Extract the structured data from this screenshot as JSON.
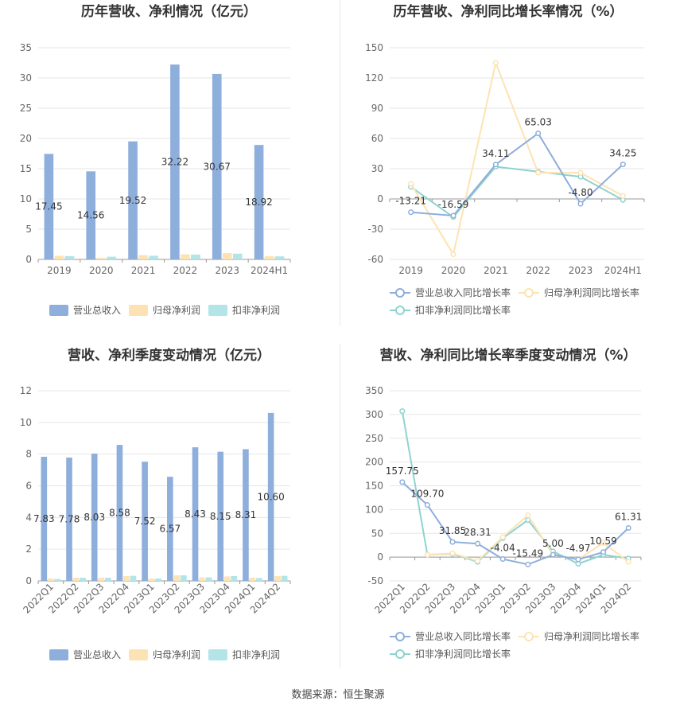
{
  "source_label": "数据来源：",
  "source_name": "恒生聚源",
  "colors": {
    "revenue": "#8eaedb",
    "net_profit": "#fde3b3",
    "deducted_profit": "#b3e4e8",
    "revenue_line": "#8eaedb",
    "net_profit_line": "#fde3b3",
    "deducted_line": "#8fd3d0",
    "grid": "#e6e6e6",
    "text": "#666666",
    "title": "#333333"
  },
  "chart_data": [
    {
      "id": "annual-bar",
      "type": "bar",
      "title": "历年营收、净利情况（亿元）",
      "categories": [
        "2019",
        "2020",
        "2021",
        "2022",
        "2023",
        "2024H1"
      ],
      "ylim": [
        0,
        35
      ],
      "yticks": [
        0,
        5,
        10,
        15,
        20,
        25,
        30,
        35
      ],
      "series": [
        {
          "name": "营业总收入",
          "values": [
            17.45,
            14.56,
            19.52,
            32.22,
            30.67,
            18.92
          ],
          "labels": [
            "17.45",
            "14.56",
            "19.52",
            "32.22",
            "30.67",
            "18.92"
          ]
        },
        {
          "name": "归母净利润",
          "values": [
            0.6,
            0.25,
            0.7,
            0.85,
            1.05,
            0.55
          ]
        },
        {
          "name": "扣非净利润",
          "values": [
            0.55,
            0.45,
            0.6,
            0.8,
            0.95,
            0.5
          ]
        }
      ],
      "legend": "bottom"
    },
    {
      "id": "annual-line",
      "type": "line",
      "title": "历年营收、净利同比增长率情况（%）",
      "categories": [
        "2019",
        "2020",
        "2021",
        "2022",
        "2023",
        "2024H1"
      ],
      "ylim": [
        -60,
        150
      ],
      "yticks": [
        -60,
        -30,
        0,
        30,
        60,
        90,
        120,
        150
      ],
      "series": [
        {
          "name": "营业总收入同比增长率",
          "values": [
            -13.21,
            -16.59,
            34.11,
            65.03,
            -4.8,
            34.25
          ],
          "labels": [
            "-13.21",
            "-16.59",
            "34.11",
            "65.03",
            "-4.80",
            "34.25"
          ]
        },
        {
          "name": "归母净利润同比增长率",
          "values": [
            15,
            -55,
            135,
            26,
            26,
            3
          ]
        },
        {
          "name": "扣非净利润同比增长率",
          "values": [
            12,
            -18,
            32,
            27,
            22,
            -1
          ]
        }
      ],
      "legend": "bottom"
    },
    {
      "id": "quarter-bar",
      "type": "bar",
      "title": "营收、净利季度变动情况（亿元）",
      "categories": [
        "2022Q1",
        "2022Q2",
        "2022Q3",
        "2022Q4",
        "2023Q1",
        "2023Q2",
        "2023Q3",
        "2023Q4",
        "2024Q1",
        "2024Q2"
      ],
      "ylim": [
        0,
        12
      ],
      "yticks": [
        0,
        2,
        4,
        6,
        8,
        10,
        12
      ],
      "series": [
        {
          "name": "营业总收入",
          "values": [
            7.83,
            7.78,
            8.03,
            8.58,
            7.52,
            6.57,
            8.43,
            8.15,
            8.31,
            10.6
          ],
          "labels": [
            "7.83",
            "7.78",
            "8.03",
            "8.58",
            "7.52",
            "6.57",
            "8.43",
            "8.15",
            "8.31",
            "10.60"
          ]
        },
        {
          "name": "归母净利润",
          "values": [
            0.15,
            0.2,
            0.2,
            0.3,
            0.15,
            0.35,
            0.22,
            0.28,
            0.2,
            0.3
          ]
        },
        {
          "name": "扣非净利润",
          "values": [
            0.12,
            0.2,
            0.2,
            0.32,
            0.15,
            0.35,
            0.22,
            0.3,
            0.18,
            0.32
          ]
        }
      ],
      "legend": "bottom"
    },
    {
      "id": "quarter-line",
      "type": "line",
      "title": "营收、净利同比增长率季度变动情况（%）",
      "categories": [
        "2022Q1",
        "2022Q2",
        "2022Q3",
        "2022Q4",
        "2023Q1",
        "2023Q2",
        "2023Q3",
        "2023Q4",
        "2024Q1",
        "2024Q2"
      ],
      "ylim": [
        -50,
        350
      ],
      "yticks": [
        -50,
        0,
        50,
        100,
        150,
        200,
        250,
        300,
        350
      ],
      "series": [
        {
          "name": "营业总收入同比增长率",
          "values": [
            157.75,
            109.7,
            31.85,
            28.31,
            -4.04,
            -15.49,
            5.0,
            -4.97,
            10.59,
            61.31
          ],
          "labels": [
            "157.75",
            "109.70",
            "31.85",
            "28.31",
            "-4.04",
            "-15.49",
            "5.00",
            "-4.97",
            "10.59",
            "61.31"
          ]
        },
        {
          "name": "归母净利润同比增长率",
          "values": [
            null,
            5,
            8,
            -8,
            42,
            88,
            5,
            -5,
            30,
            -10
          ]
        },
        {
          "name": "扣非净利润同比增长率",
          "values": [
            307,
            5,
            7,
            -10,
            40,
            78,
            12,
            -14,
            5,
            -3
          ]
        }
      ],
      "legend": "bottom"
    }
  ]
}
